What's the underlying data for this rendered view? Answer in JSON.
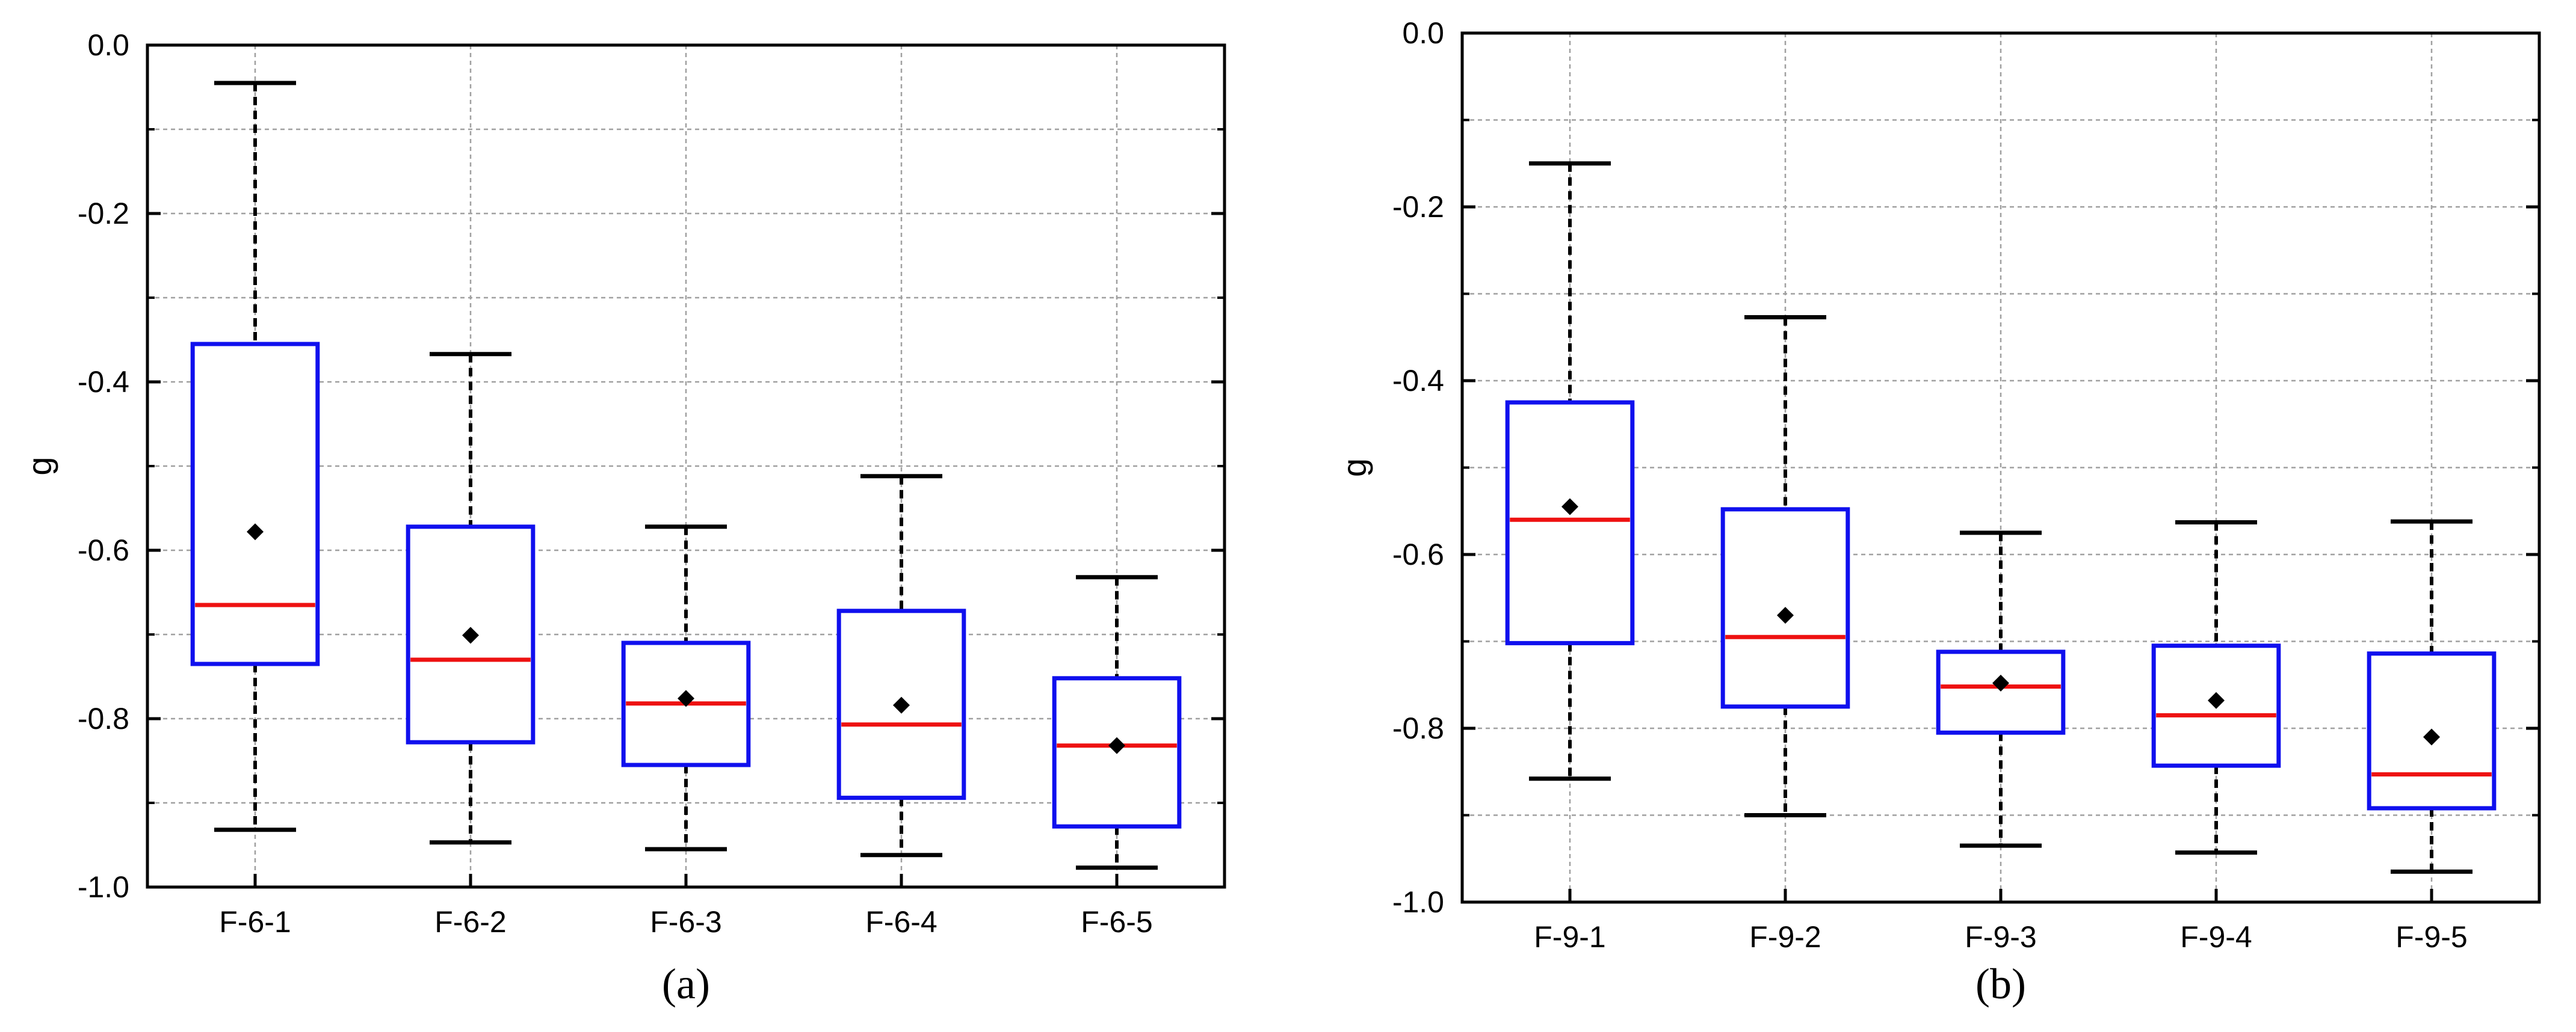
{
  "chart_data": [
    {
      "type": "boxplot",
      "panel_label": "(a)",
      "title": "",
      "xlabel": "",
      "ylabel": "g",
      "ylim": [
        -1.0,
        0.0
      ],
      "yticks": [
        0.0,
        -0.2,
        -0.4,
        -0.6,
        -0.8,
        -1.0
      ],
      "ytick_labels": [
        "0.0",
        "-0.2",
        "-0.4",
        "-0.6",
        "-0.8",
        "-1.0"
      ],
      "grid": true,
      "categories": [
        "F-6-1",
        "F-6-2",
        "F-6-3",
        "F-6-4",
        "F-6-5"
      ],
      "boxes": [
        {
          "name": "F-6-1",
          "whisker_high": -0.045,
          "q3": -0.355,
          "median": -0.665,
          "mean": -0.578,
          "q1": -0.735,
          "whisker_low": -0.932
        },
        {
          "name": "F-6-2",
          "whisker_high": -0.367,
          "q3": -0.572,
          "median": -0.73,
          "mean": -0.701,
          "q1": -0.828,
          "whisker_low": -0.947
        },
        {
          "name": "F-6-3",
          "whisker_high": -0.572,
          "q3": -0.71,
          "median": -0.782,
          "mean": -0.776,
          "q1": -0.855,
          "whisker_low": -0.955
        },
        {
          "name": "F-6-4",
          "whisker_high": -0.512,
          "q3": -0.672,
          "median": -0.807,
          "mean": -0.784,
          "q1": -0.894,
          "whisker_low": -0.962
        },
        {
          "name": "F-6-5",
          "whisker_high": -0.632,
          "q3": -0.752,
          "median": -0.832,
          "mean": -0.832,
          "q1": -0.928,
          "whisker_low": -0.977
        }
      ]
    },
    {
      "type": "boxplot",
      "panel_label": "(b)",
      "title": "",
      "xlabel": "",
      "ylabel": "g",
      "ylim": [
        -1.0,
        0.0
      ],
      "yticks": [
        0.0,
        -0.2,
        -0.4,
        -0.6,
        -0.8,
        -1.0
      ],
      "ytick_labels": [
        "0.0",
        "-0.2",
        "-0.4",
        "-0.6",
        "-0.8",
        "-1.0"
      ],
      "grid": true,
      "categories": [
        "F-9-1",
        "F-9-2",
        "F-9-3",
        "F-9-4",
        "F-9-5"
      ],
      "boxes": [
        {
          "name": "F-9-1",
          "whisker_high": -0.15,
          "q3": -0.425,
          "median": -0.56,
          "mean": -0.545,
          "q1": -0.702,
          "whisker_low": -0.858
        },
        {
          "name": "F-9-2",
          "whisker_high": -0.327,
          "q3": -0.548,
          "median": -0.695,
          "mean": -0.67,
          "q1": -0.775,
          "whisker_low": -0.9
        },
        {
          "name": "F-9-3",
          "whisker_high": -0.575,
          "q3": -0.712,
          "median": -0.752,
          "mean": -0.748,
          "q1": -0.805,
          "whisker_low": -0.935
        },
        {
          "name": "F-9-4",
          "whisker_high": -0.563,
          "q3": -0.705,
          "median": -0.785,
          "mean": -0.768,
          "q1": -0.843,
          "whisker_low": -0.943
        },
        {
          "name": "F-9-5",
          "whisker_high": -0.562,
          "q3": -0.714,
          "median": -0.853,
          "mean": -0.81,
          "q1": -0.892,
          "whisker_low": -0.965
        }
      ]
    }
  ],
  "colors": {
    "box": "#1010ee",
    "median": "#ee1111",
    "whisker": "#000000",
    "mean": "#000000",
    "grid": "#a0a0a0",
    "axis": "#000000"
  }
}
